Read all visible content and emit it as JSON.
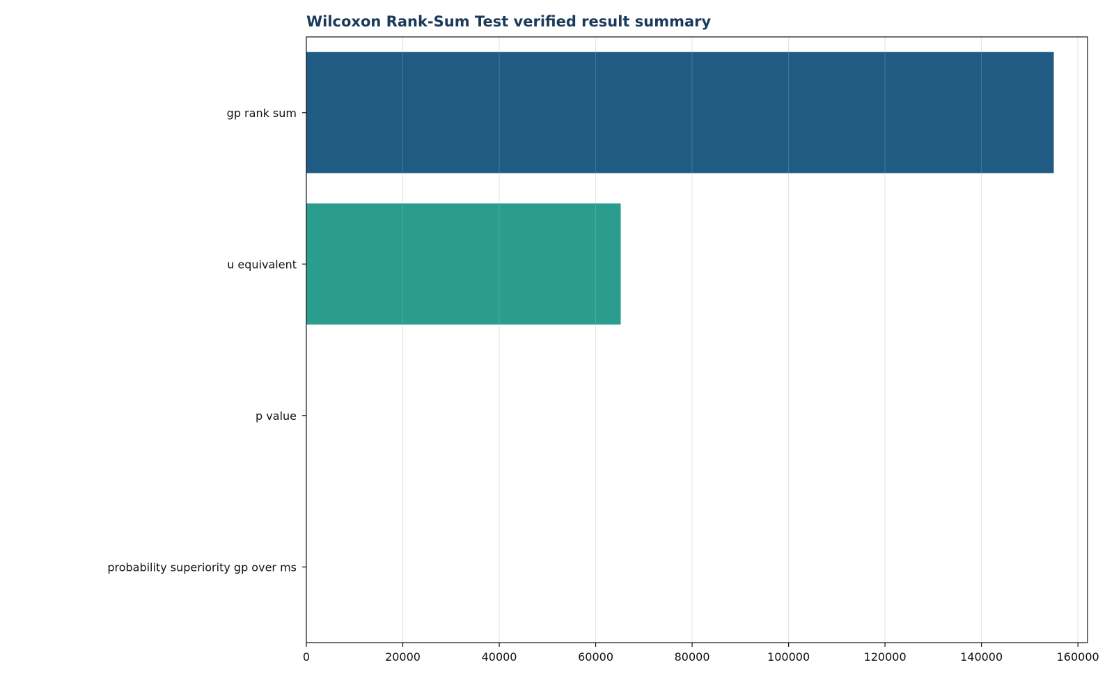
{
  "chart_data": {
    "type": "bar",
    "orientation": "horizontal",
    "title": "Wilcoxon Rank-Sum Test verified result summary",
    "xlabel": "",
    "ylabel": "",
    "categories": [
      "gp rank sum",
      "u equivalent",
      "p value",
      "probability superiority gp over ms"
    ],
    "values": [
      155000,
      65200,
      0,
      0.5
    ],
    "colors": [
      "#205b83",
      "#2a9d8f",
      "#e9c46a",
      "#e76f51"
    ],
    "xlim": [
      0,
      162000
    ],
    "xticks": [
      0,
      20000,
      40000,
      60000,
      80000,
      100000,
      120000,
      140000,
      160000
    ],
    "xtick_labels": [
      "0",
      "20000",
      "40000",
      "60000",
      "80000",
      "100000",
      "120000",
      "140000",
      "160000"
    ],
    "grid": "x",
    "legend": "none"
  }
}
